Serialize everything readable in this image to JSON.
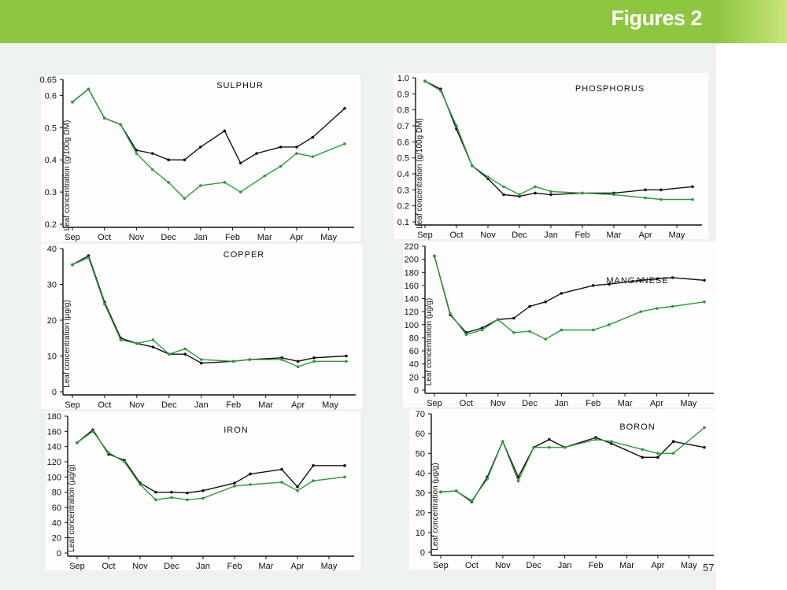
{
  "header": {
    "title": "Figures 2"
  },
  "footer": {
    "page_number": "57"
  },
  "colors": {
    "bar": "#8dc63f",
    "series_black": "#111111",
    "series_green": "#2e9a3a"
  },
  "chart_data": [
    {
      "type": "line",
      "title": "SULPHUR",
      "ylabel": "Leaf concentration (g/100g DM)",
      "x": [
        "Sep",
        "Oct",
        "Nov",
        "Dec",
        "Jan",
        "Feb",
        "Mar",
        "Apr",
        "May"
      ],
      "ylim": [
        0.2,
        0.65
      ],
      "yticks": [
        "0.2",
        "0.3",
        "0.4",
        "0.5",
        "0.6",
        "0.65"
      ],
      "series": [
        {
          "color": "#111111",
          "points": [
            [
              0.0,
              0.58
            ],
            [
              0.5,
              0.62
            ],
            [
              1.0,
              0.53
            ],
            [
              1.5,
              0.51
            ],
            [
              2.0,
              0.43
            ],
            [
              2.5,
              0.42
            ],
            [
              3.0,
              0.4
            ],
            [
              3.5,
              0.4
            ],
            [
              4.0,
              0.44
            ],
            [
              4.75,
              0.49
            ],
            [
              5.25,
              0.39
            ],
            [
              5.75,
              0.42
            ],
            [
              6.5,
              0.44
            ],
            [
              7.0,
              0.44
            ],
            [
              7.5,
              0.47
            ],
            [
              8.5,
              0.56
            ]
          ]
        },
        {
          "color": "#2e9a3a",
          "points": [
            [
              0.0,
              0.58
            ],
            [
              0.5,
              0.62
            ],
            [
              1.0,
              0.53
            ],
            [
              1.5,
              0.51
            ],
            [
              2.0,
              0.42
            ],
            [
              2.5,
              0.37
            ],
            [
              3.0,
              0.33
            ],
            [
              3.5,
              0.28
            ],
            [
              4.0,
              0.32
            ],
            [
              4.75,
              0.33
            ],
            [
              5.25,
              0.3
            ],
            [
              6.0,
              0.35
            ],
            [
              6.5,
              0.38
            ],
            [
              7.0,
              0.42
            ],
            [
              7.5,
              0.41
            ],
            [
              8.5,
              0.45
            ]
          ]
        }
      ]
    },
    {
      "type": "line",
      "title": "PHOSPHORUS",
      "ylabel": "Leaf concentration (g/100g DM)",
      "x": [
        "Sep",
        "Oct",
        "Nov",
        "Dec",
        "Jan",
        "Feb",
        "Mar",
        "Apr",
        "May"
      ],
      "ylim": [
        0.1,
        1.0
      ],
      "yticks": [
        "0.1",
        "0.2",
        "0.3",
        "0.4",
        "0.5",
        "0.6",
        "0.7",
        "0.8",
        "0.9",
        "1.0"
      ],
      "series": [
        {
          "color": "#111111",
          "points": [
            [
              0.0,
              0.98
            ],
            [
              0.5,
              0.93
            ],
            [
              1.0,
              0.68
            ],
            [
              1.5,
              0.45
            ],
            [
              2.0,
              0.37
            ],
            [
              2.5,
              0.27
            ],
            [
              3.0,
              0.26
            ],
            [
              3.5,
              0.28
            ],
            [
              4.0,
              0.27
            ],
            [
              5.0,
              0.28
            ],
            [
              6.0,
              0.28
            ],
            [
              7.0,
              0.3
            ],
            [
              7.5,
              0.3
            ],
            [
              8.5,
              0.32
            ]
          ]
        },
        {
          "color": "#2e9a3a",
          "points": [
            [
              0.0,
              0.98
            ],
            [
              0.5,
              0.92
            ],
            [
              1.0,
              0.7
            ],
            [
              1.5,
              0.45
            ],
            [
              2.0,
              0.38
            ],
            [
              2.5,
              0.32
            ],
            [
              3.0,
              0.27
            ],
            [
              3.5,
              0.32
            ],
            [
              4.0,
              0.29
            ],
            [
              5.0,
              0.28
            ],
            [
              6.0,
              0.27
            ],
            [
              7.0,
              0.25
            ],
            [
              7.5,
              0.24
            ],
            [
              8.5,
              0.24
            ]
          ]
        }
      ]
    },
    {
      "type": "line",
      "title": "COPPER",
      "ylabel": "Leaf concentration (µg/g)",
      "x": [
        "Sep",
        "Oct",
        "Nov",
        "Dec",
        "Jan",
        "Feb",
        "Mar",
        "Apr",
        "May"
      ],
      "ylim": [
        0,
        40
      ],
      "yticks": [
        "0",
        "10",
        "20",
        "30",
        "40"
      ],
      "series": [
        {
          "color": "#111111",
          "points": [
            [
              0.0,
              35.5
            ],
            [
              0.5,
              38
            ],
            [
              1.0,
              25
            ],
            [
              1.5,
              15
            ],
            [
              2.0,
              13.5
            ],
            [
              2.5,
              12.5
            ],
            [
              3.0,
              10.5
            ],
            [
              3.5,
              10.5
            ],
            [
              4.0,
              8
            ],
            [
              5.0,
              8.5
            ],
            [
              5.5,
              9
            ],
            [
              6.5,
              9.5
            ],
            [
              7.0,
              8.5
            ],
            [
              7.5,
              9.5
            ],
            [
              8.5,
              10
            ]
          ]
        },
        {
          "color": "#2e9a3a",
          "points": [
            [
              0.0,
              35.5
            ],
            [
              0.5,
              37.5
            ],
            [
              1.0,
              24.5
            ],
            [
              1.5,
              14.5
            ],
            [
              2.0,
              13.5
            ],
            [
              2.5,
              14.5
            ],
            [
              3.0,
              10.5
            ],
            [
              3.5,
              12
            ],
            [
              4.0,
              9
            ],
            [
              5.0,
              8.5
            ],
            [
              5.5,
              9
            ],
            [
              6.5,
              9
            ],
            [
              7.0,
              7
            ],
            [
              7.5,
              8.5
            ],
            [
              8.5,
              8.5
            ]
          ]
        }
      ]
    },
    {
      "type": "line",
      "title": "MANGANESE",
      "ylabel": "Leaf concentration (µg/g)",
      "x": [
        "Sep",
        "Oct",
        "Nov",
        "Dec",
        "Jan",
        "Feb",
        "Mar",
        "Apr",
        "May"
      ],
      "ylim": [
        0,
        220
      ],
      "yticks": [
        "0",
        "20",
        "40",
        "60",
        "80",
        "100",
        "120",
        "140",
        "160",
        "180",
        "200",
        "220"
      ],
      "series": [
        {
          "color": "#111111",
          "points": [
            [
              0.0,
              205
            ],
            [
              0.5,
              115
            ],
            [
              1.0,
              88
            ],
            [
              1.5,
              95
            ],
            [
              2.0,
              108
            ],
            [
              2.5,
              110
            ],
            [
              3.0,
              128
            ],
            [
              3.5,
              135
            ],
            [
              4.0,
              148
            ],
            [
              5.0,
              160
            ],
            [
              5.5,
              162
            ],
            [
              6.5,
              168
            ],
            [
              7.0,
              170
            ],
            [
              7.5,
              172
            ],
            [
              8.5,
              168
            ]
          ]
        },
        {
          "color": "#2e9a3a",
          "points": [
            [
              0.0,
              205
            ],
            [
              0.5,
              117
            ],
            [
              1.0,
              85
            ],
            [
              1.5,
              92
            ],
            [
              2.0,
              108
            ],
            [
              2.5,
              88
            ],
            [
              3.0,
              90
            ],
            [
              3.5,
              78
            ],
            [
              4.0,
              92
            ],
            [
              5.0,
              92
            ],
            [
              5.5,
              100
            ],
            [
              6.5,
              120
            ],
            [
              7.0,
              125
            ],
            [
              7.5,
              128
            ],
            [
              8.5,
              135
            ]
          ]
        }
      ]
    },
    {
      "type": "line",
      "title": "IRON",
      "ylabel": "Leaf concentration (µg/g)",
      "x": [
        "Sep",
        "Oct",
        "Nov",
        "Dec",
        "Jan",
        "Feb",
        "Mar",
        "Apr",
        "May"
      ],
      "ylim": [
        0,
        180
      ],
      "yticks": [
        "0",
        "20",
        "40",
        "60",
        "80",
        "100",
        "120",
        "140",
        "160",
        "180"
      ],
      "series": [
        {
          "color": "#111111",
          "points": [
            [
              0.0,
              145
            ],
            [
              0.5,
              162
            ],
            [
              1.0,
              130
            ],
            [
              1.5,
              122
            ],
            [
              2.0,
              92
            ],
            [
              2.5,
              80
            ],
            [
              3.0,
              80
            ],
            [
              3.5,
              79
            ],
            [
              4.0,
              82
            ],
            [
              5.0,
              92
            ],
            [
              5.5,
              104
            ],
            [
              6.5,
              110
            ],
            [
              7.0,
              87
            ],
            [
              7.5,
              115
            ],
            [
              8.5,
              115
            ]
          ]
        },
        {
          "color": "#2e9a3a",
          "points": [
            [
              0.0,
              145
            ],
            [
              0.5,
              160
            ],
            [
              1.0,
              132
            ],
            [
              1.5,
              120
            ],
            [
              2.0,
              90
            ],
            [
              2.5,
              70
            ],
            [
              3.0,
              73
            ],
            [
              3.5,
              70
            ],
            [
              4.0,
              72
            ],
            [
              5.0,
              88
            ],
            [
              5.5,
              90
            ],
            [
              6.5,
              93
            ],
            [
              7.0,
              82
            ],
            [
              7.5,
              95
            ],
            [
              8.5,
              100
            ]
          ]
        }
      ]
    },
    {
      "type": "line",
      "title": "BORON",
      "ylabel": "Leaf concentration (µg/g)",
      "x": [
        "Sep",
        "Oct",
        "Nov",
        "Dec",
        "Jan",
        "Feb",
        "Mar",
        "Apr",
        "May"
      ],
      "ylim": [
        0,
        70
      ],
      "yticks": [
        "0",
        "10",
        "20",
        "30",
        "40",
        "50",
        "60",
        "70"
      ],
      "series": [
        {
          "color": "#111111",
          "points": [
            [
              0.0,
              30.5
            ],
            [
              0.5,
              31
            ],
            [
              1.0,
              25.5
            ],
            [
              1.5,
              38
            ],
            [
              2.0,
              56
            ],
            [
              2.5,
              38
            ],
            [
              3.0,
              53
            ],
            [
              3.5,
              57
            ],
            [
              4.0,
              53
            ],
            [
              5.0,
              58
            ],
            [
              5.5,
              55
            ],
            [
              6.5,
              48
            ],
            [
              7.0,
              48
            ],
            [
              7.5,
              56
            ],
            [
              8.5,
              53
            ]
          ]
        },
        {
          "color": "#2e9a3a",
          "points": [
            [
              0.0,
              30.5
            ],
            [
              0.5,
              31
            ],
            [
              1.0,
              26
            ],
            [
              1.5,
              37
            ],
            [
              2.0,
              56
            ],
            [
              2.5,
              36
            ],
            [
              3.0,
              53
            ],
            [
              3.5,
              53
            ],
            [
              4.0,
              53
            ],
            [
              5.0,
              57
            ],
            [
              5.5,
              56
            ],
            [
              6.5,
              52
            ],
            [
              7.0,
              50
            ],
            [
              7.5,
              50
            ],
            [
              8.5,
              63
            ]
          ]
        }
      ]
    }
  ]
}
